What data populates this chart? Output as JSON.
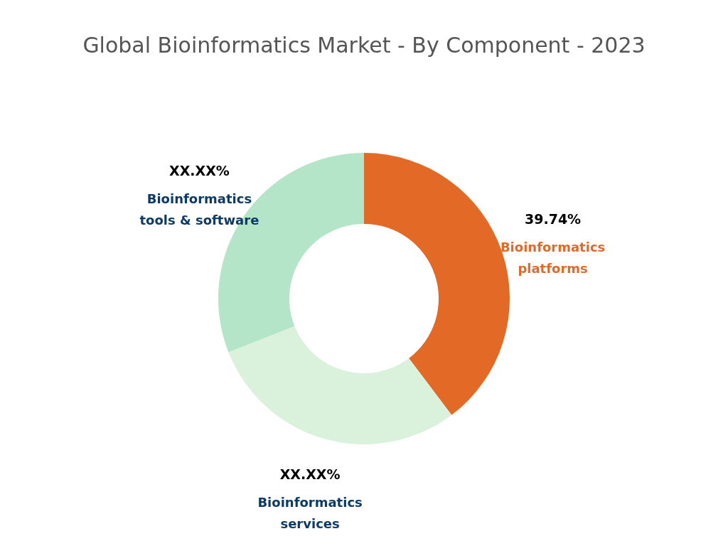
{
  "chart_data": {
    "type": "donut",
    "title": "Global Bioinformatics Market - By Component - 2023",
    "categories": [
      "Bioinformatics platforms",
      "Bioinformatics services",
      "Bioinformatics tools & software"
    ],
    "values": [
      39.74,
      29.26,
      31.0
    ],
    "colors": [
      "#e36a26",
      "#daf2dc",
      "#b5e5c8"
    ],
    "value_labels": [
      "39.74%",
      "XX.XX%",
      "XX.XX%"
    ],
    "legend": false
  }
}
